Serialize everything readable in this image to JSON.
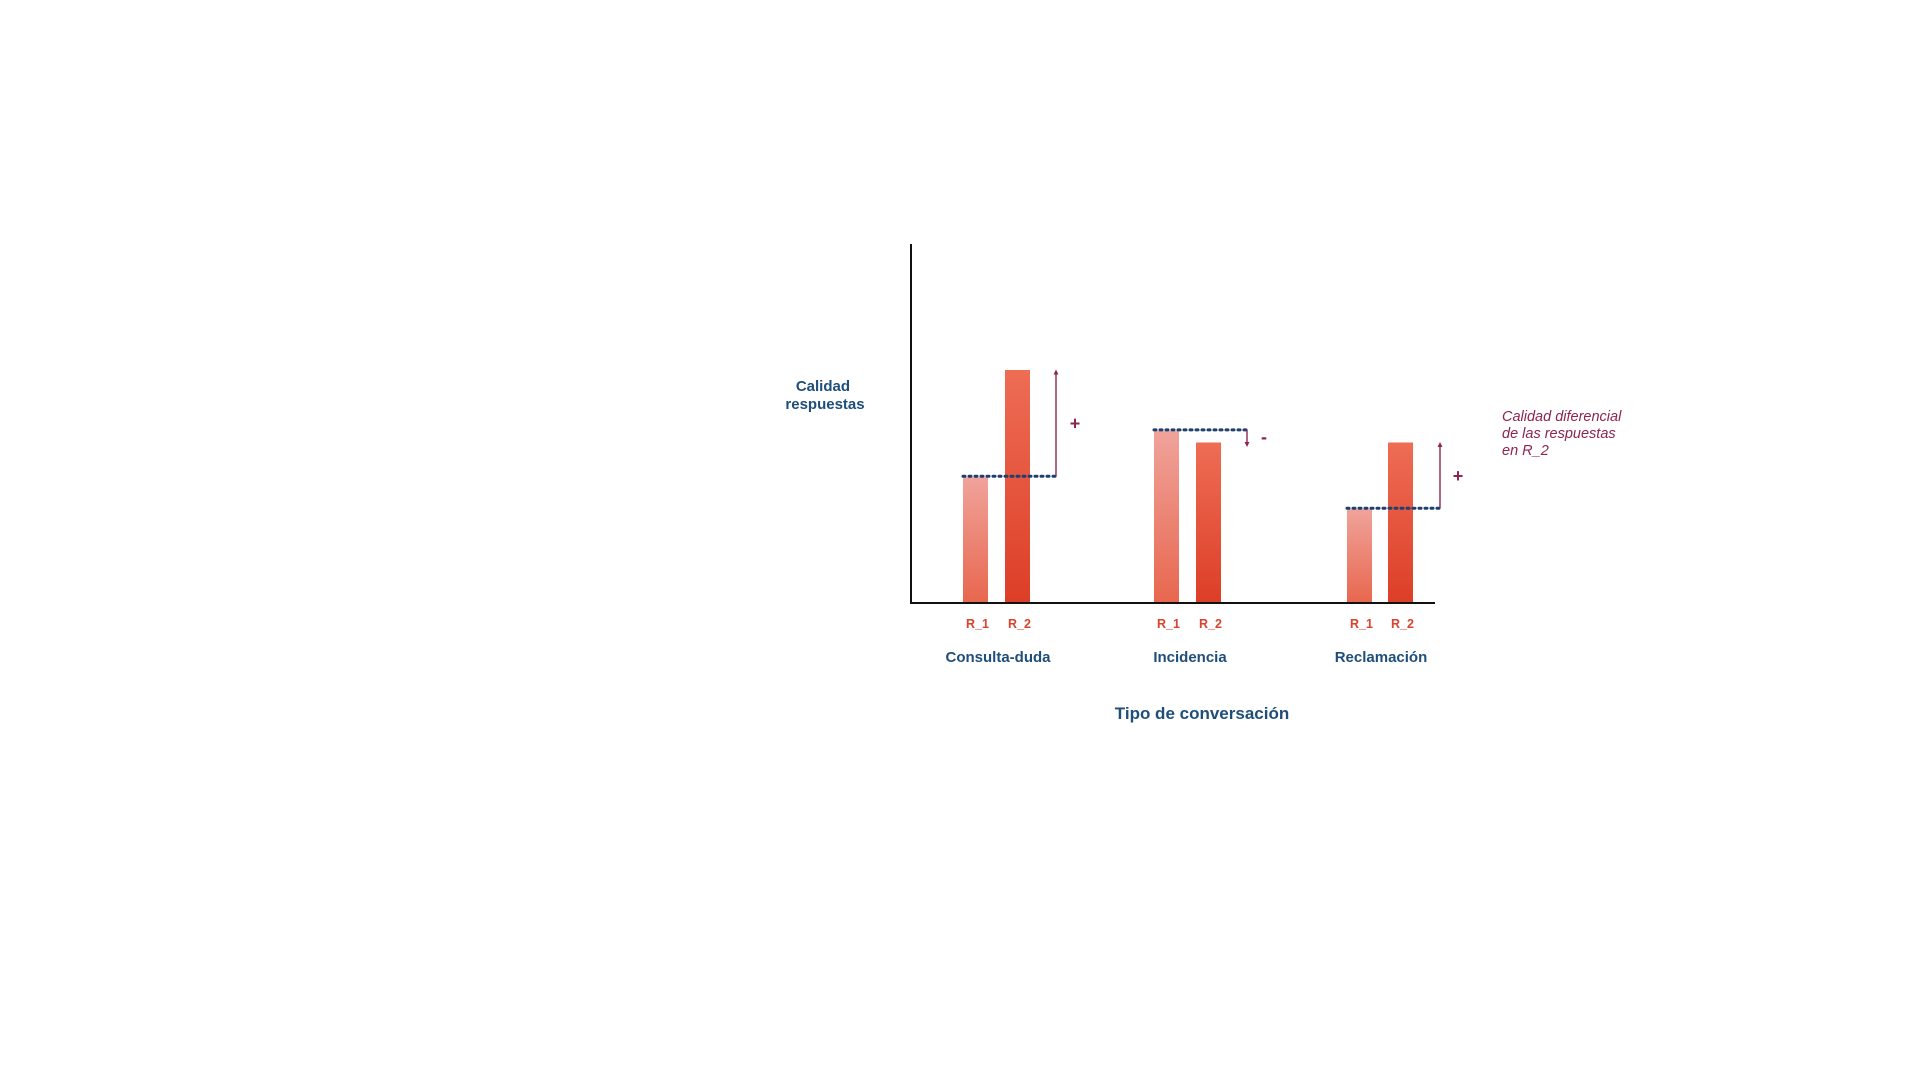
{
  "chart_data": {
    "type": "bar",
    "title": "",
    "xlabel": "Tipo de conversación",
    "ylabel": [
      "Calidad",
      "respuestas"
    ],
    "ylim": [
      0,
      100
    ],
    "grid": false,
    "categories": [
      "Consulta-duda",
      "Incidencia",
      "Reclamación"
    ],
    "series": [
      {
        "name": "R_1",
        "values": [
          43,
          59,
          32
        ]
      },
      {
        "name": "R_2",
        "values": [
          80,
          55,
          55
        ]
      }
    ],
    "difference_signs": [
      "+",
      "-",
      "+"
    ],
    "annotation": [
      "Calidad diferencial",
      "de las respuestas",
      "en R_2"
    ],
    "colors": {
      "r1_top": "#f0a39b",
      "r1_bottom": "#e8674f",
      "r2_top": "#ee6d55",
      "r2_bottom": "#dd3e27",
      "axis": "#111111",
      "dotted": "#1f3f6e",
      "arrow": "#8e2450",
      "label_blue": "#1f4e79",
      "label_red": "#d9432f"
    }
  }
}
